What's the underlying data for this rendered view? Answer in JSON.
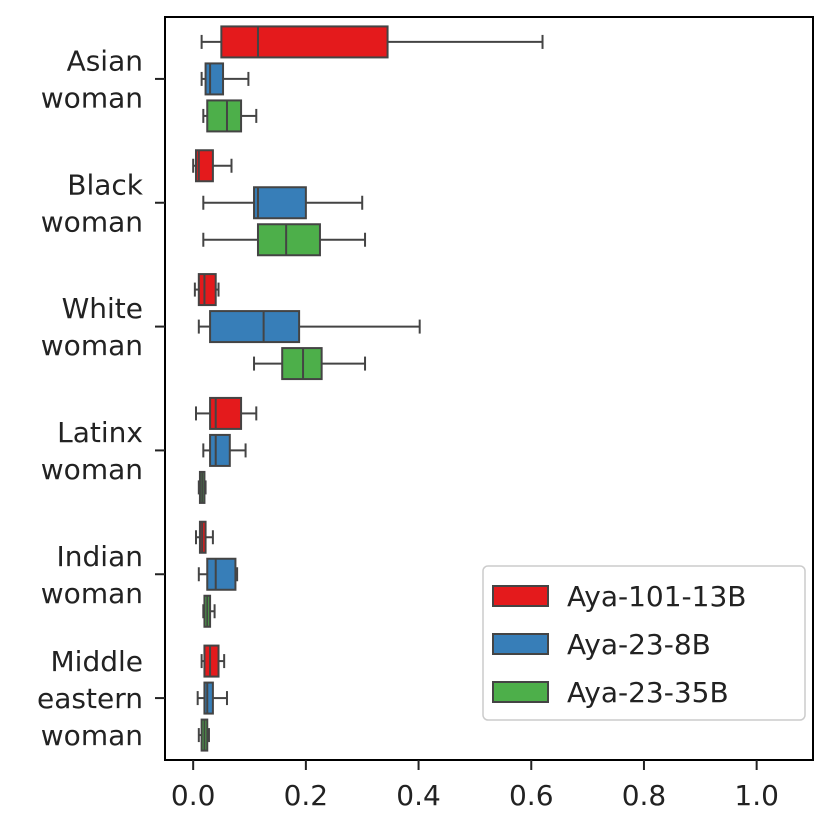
{
  "chart_data": {
    "type": "boxplot",
    "orientation": "horizontal",
    "title": "",
    "xlabel": "",
    "ylabel": "",
    "xlim": [
      -0.05,
      1.1
    ],
    "x_ticks": [
      0.0,
      0.2,
      0.4,
      0.6,
      0.8,
      1.0
    ],
    "x_tick_labels": [
      "0.0",
      "0.2",
      "0.4",
      "0.6",
      "0.8",
      "1.0"
    ],
    "grid": false,
    "legend_position": "lower-right",
    "categories": [
      [
        "Asian",
        "woman"
      ],
      [
        "Black",
        "woman"
      ],
      [
        "White",
        "woman"
      ],
      [
        "Latinx",
        "woman"
      ],
      [
        "Indian",
        "woman"
      ],
      [
        "Middle",
        "eastern",
        "woman"
      ]
    ],
    "series": [
      {
        "name": "Aya-101-13B",
        "color": "#e41a1c",
        "boxes": [
          {
            "whislo": 0.015,
            "q1": 0.05,
            "med": 0.115,
            "q3": 0.345,
            "whishi": 0.62
          },
          {
            "whislo": 0.0,
            "q1": 0.005,
            "med": 0.01,
            "q3": 0.035,
            "whishi": 0.068
          },
          {
            "whislo": 0.003,
            "q1": 0.01,
            "med": 0.02,
            "q3": 0.04,
            "whishi": 0.045
          },
          {
            "whislo": 0.005,
            "q1": 0.03,
            "med": 0.04,
            "q3": 0.085,
            "whishi": 0.112
          },
          {
            "whislo": 0.005,
            "q1": 0.012,
            "med": 0.016,
            "q3": 0.022,
            "whishi": 0.035
          },
          {
            "whislo": 0.015,
            "q1": 0.02,
            "med": 0.03,
            "q3": 0.045,
            "whishi": 0.055
          }
        ]
      },
      {
        "name": "Aya-23-8B",
        "color": "#377eb8",
        "boxes": [
          {
            "whislo": 0.015,
            "q1": 0.022,
            "med": 0.03,
            "q3": 0.053,
            "whishi": 0.098
          },
          {
            "whislo": 0.018,
            "q1": 0.108,
            "med": 0.115,
            "q3": 0.2,
            "whishi": 0.3
          },
          {
            "whislo": 0.01,
            "q1": 0.03,
            "med": 0.125,
            "q3": 0.188,
            "whishi": 0.402
          },
          {
            "whislo": 0.018,
            "q1": 0.03,
            "med": 0.04,
            "q3": 0.065,
            "whishi": 0.093
          },
          {
            "whislo": 0.01,
            "q1": 0.025,
            "med": 0.04,
            "q3": 0.075,
            "whishi": 0.078
          },
          {
            "whislo": 0.008,
            "q1": 0.02,
            "med": 0.025,
            "q3": 0.035,
            "whishi": 0.06
          }
        ]
      },
      {
        "name": "Aya-23-35B",
        "color": "#4daf4a",
        "boxes": [
          {
            "whislo": 0.018,
            "q1": 0.025,
            "med": 0.06,
            "q3": 0.085,
            "whishi": 0.112
          },
          {
            "whislo": 0.018,
            "q1": 0.115,
            "med": 0.165,
            "q3": 0.225,
            "whishi": 0.305
          },
          {
            "whislo": 0.108,
            "q1": 0.158,
            "med": 0.195,
            "q3": 0.228,
            "whishi": 0.305
          },
          {
            "whislo": 0.01,
            "q1": 0.012,
            "med": 0.016,
            "q3": 0.02,
            "whishi": 0.022
          },
          {
            "whislo": 0.018,
            "q1": 0.02,
            "med": 0.025,
            "q3": 0.03,
            "whishi": 0.038
          },
          {
            "whislo": 0.01,
            "q1": 0.015,
            "med": 0.02,
            "q3": 0.025,
            "whishi": 0.028
          }
        ]
      }
    ]
  }
}
